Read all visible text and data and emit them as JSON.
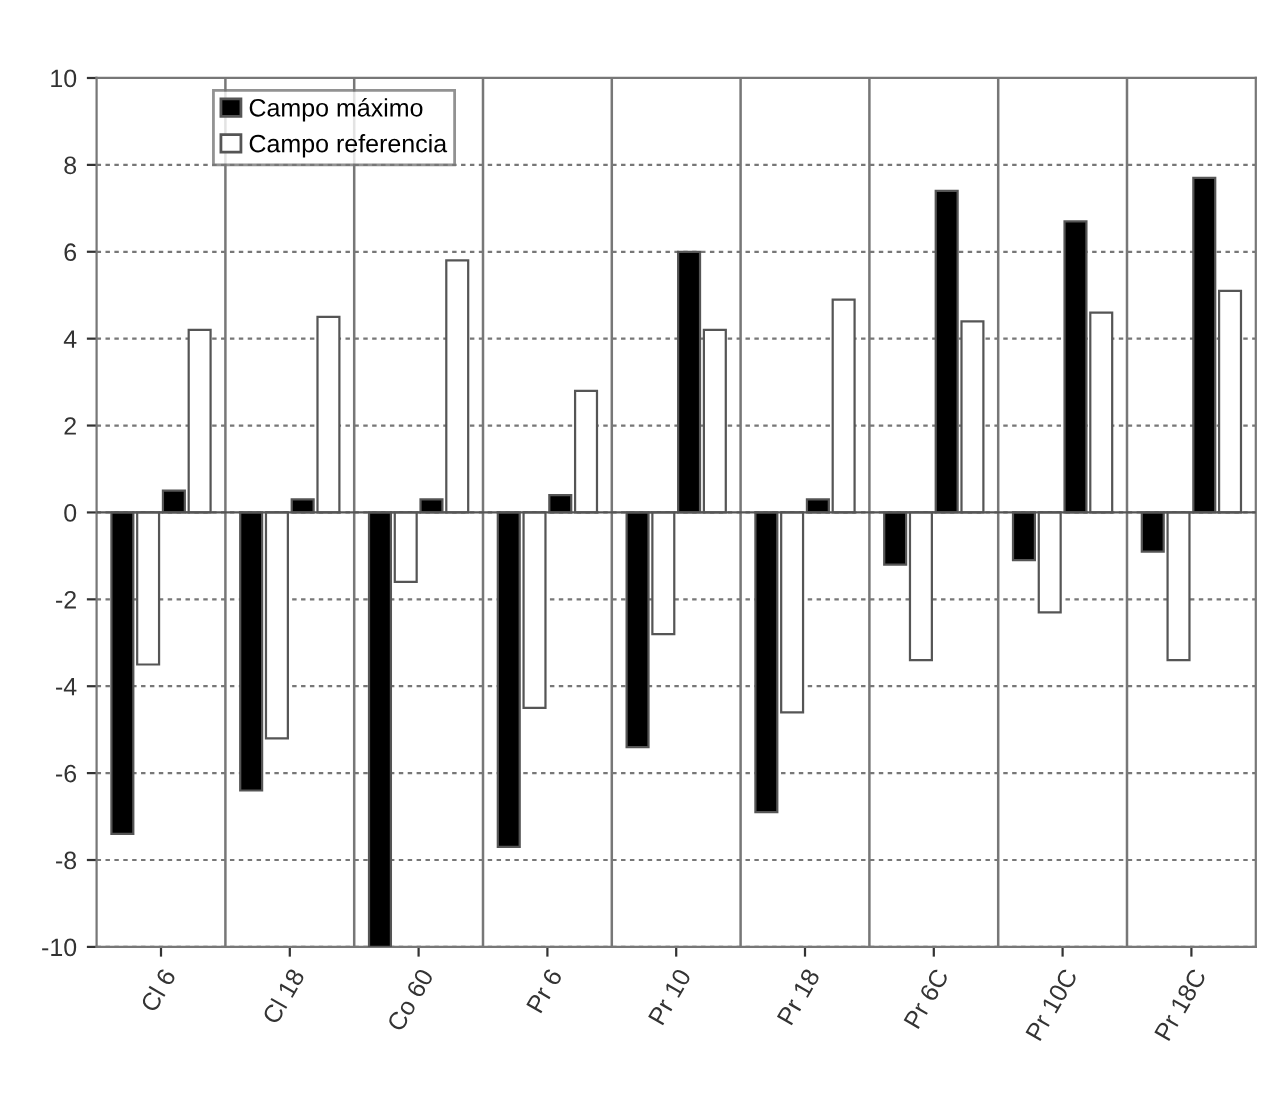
{
  "chart_data": {
    "type": "bar",
    "categories": [
      "Cl 6",
      "Cl 18",
      "Co 60",
      "Pr 6",
      "Pr 10",
      "Pr 18",
      "Pr 6C",
      "Pr 10C",
      "Pr 18C"
    ],
    "series": [
      {
        "name": "Campo máximo",
        "color": "#000000",
        "values": [
          -7.4,
          -6.4,
          -10,
          -7.7,
          -5.4,
          -6.9,
          -1.2,
          -1.1,
          -0.9
        ]
      },
      {
        "name": "Campo referencia",
        "color": "#ffffff",
        "values": [
          -3.5,
          -5.2,
          -1.6,
          -4.5,
          -2.8,
          -4.6,
          -3.4,
          -2.3,
          -3.4
        ]
      },
      {
        "color": "#000000",
        "values": [
          0.5,
          0.3,
          0.3,
          0.4,
          6.0,
          0.3,
          7.4,
          6.7,
          7.7
        ]
      },
      {
        "color": "#ffffff",
        "values": [
          4.2,
          4.5,
          5.8,
          2.8,
          4.2,
          4.9,
          4.4,
          4.6,
          5.1
        ]
      }
    ],
    "ylim": [
      -10,
      10
    ],
    "yticks": [
      -10,
      -8,
      -6,
      -4,
      -2,
      0,
      2,
      4,
      6,
      8,
      10
    ],
    "grid": true,
    "legend": "top left"
  }
}
